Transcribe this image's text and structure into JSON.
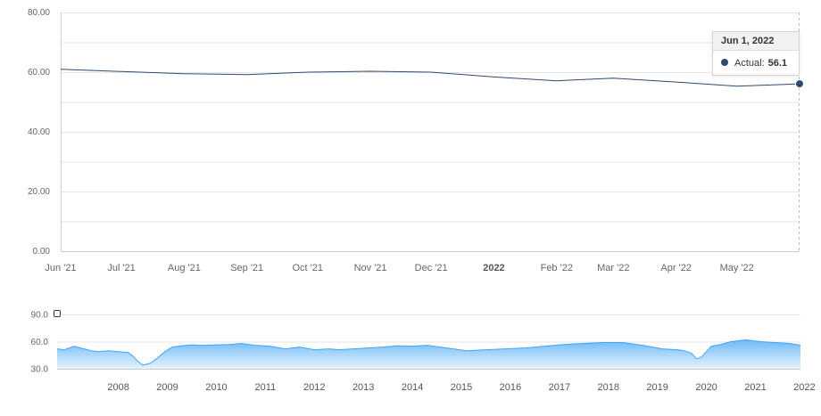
{
  "chart_data": [
    {
      "type": "line",
      "title": "",
      "xlabel": "",
      "ylabel": "",
      "ylim": [
        0,
        80
      ],
      "y_ticks": [
        "0.00",
        "20.00",
        "40.00",
        "60.00",
        "80.00"
      ],
      "x_ticks": [
        "Jun '21",
        "Jul '21",
        "Aug '21",
        "Sep '21",
        "Oct '21",
        "Nov '21",
        "Dec '21",
        "2022",
        "Feb '22",
        "Mar '22",
        "Apr '22",
        "May '22"
      ],
      "grid": true,
      "series": [
        {
          "x": [
            "2021-06-01",
            "2021-07-01",
            "2021-08-01",
            "2021-09-01",
            "2021-10-01",
            "2021-11-01",
            "2021-12-01",
            "2022-01-01",
            "2022-02-01",
            "2022-03-01",
            "2022-04-01",
            "2022-05-01",
            "2022-06-01"
          ],
          "values": [
            61.0,
            60.2,
            59.5,
            59.2,
            60.0,
            60.3,
            60.0,
            58.4,
            57.1,
            58.0,
            56.7,
            55.3,
            56.1
          ],
          "color": "#2f4a6d"
        }
      ],
      "tooltip": {
        "date": "Jun 1, 2022",
        "series_label": "Actual:",
        "value": "56.1"
      }
    },
    {
      "type": "area",
      "title": "",
      "ylim": [
        30,
        90
      ],
      "y_ticks": [
        "30.0",
        "60.0",
        "90.0"
      ],
      "x_ticks": [
        "2008",
        "2009",
        "2010",
        "2011",
        "2012",
        "2013",
        "2014",
        "2015",
        "2016",
        "2017",
        "2018",
        "2019",
        "2020",
        "2021",
        "2022"
      ],
      "series": [
        {
          "x": [
            2007.25,
            2007.4,
            2007.6,
            2007.8,
            2007.95,
            2008.1,
            2008.3,
            2008.5,
            2008.7,
            2008.8,
            2008.9,
            2009.0,
            2009.15,
            2009.3,
            2009.45,
            2009.6,
            2009.8,
            2010.0,
            2010.2,
            2010.5,
            2010.8,
            2011.0,
            2011.3,
            2011.6,
            2011.9,
            2012.2,
            2012.5,
            2012.8,
            2013.0,
            2013.3,
            2013.6,
            2013.9,
            2014.2,
            2014.5,
            2014.8,
            2015.2,
            2015.6,
            2016.0,
            2016.4,
            2016.8,
            2017.2,
            2017.6,
            2018.0,
            2018.4,
            2018.8,
            2019.2,
            2019.6,
            2019.9,
            2020.05,
            2020.2,
            2020.3,
            2020.4,
            2020.6,
            2020.8,
            2021.0,
            2021.3,
            2021.6,
            2021.9,
            2022.2,
            2022.42
          ],
          "values": [
            52.0,
            51.0,
            55.0,
            52.0,
            50.0,
            49.0,
            50.0,
            49.0,
            48.0,
            44.0,
            38.0,
            34.0,
            36.0,
            42.0,
            49.0,
            54.0,
            55.5,
            56.5,
            56.0,
            56.5,
            57.0,
            58.0,
            56.0,
            55.0,
            52.0,
            54.0,
            51.0,
            52.0,
            51.0,
            52.0,
            53.0,
            54.0,
            55.5,
            55.0,
            56.0,
            53.0,
            50.0,
            51.0,
            52.0,
            53.0,
            55.0,
            57.0,
            58.0,
            59.0,
            59.0,
            56.0,
            52.0,
            51.0,
            50.0,
            47.0,
            41.0,
            43.0,
            55.0,
            57.0,
            60.0,
            62.0,
            60.0,
            59.0,
            58.0,
            56.1
          ],
          "color": "#42a5f5"
        }
      ]
    }
  ]
}
